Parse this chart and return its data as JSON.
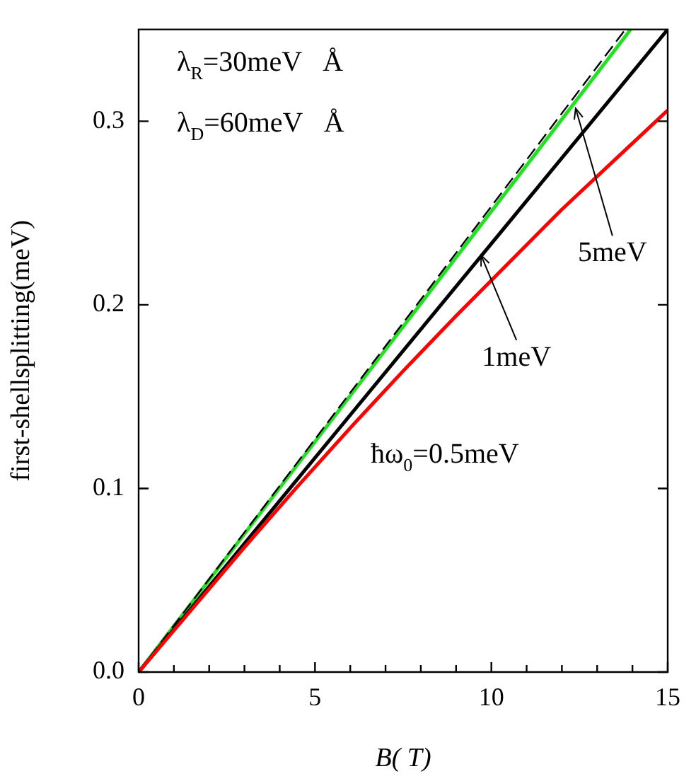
{
  "chart_data": {
    "type": "line",
    "xlabel": "B( T)",
    "ylabel": "first-shellsplitting(meV)",
    "xlim": [
      0,
      15
    ],
    "ylim": [
      0,
      0.35
    ],
    "xticks": [
      0,
      {
        "value": 1,
        "label": null
      },
      {
        "value": 2,
        "label": null
      },
      {
        "value": 3,
        "label": null
      },
      {
        "value": 4,
        "label": null
      },
      5,
      {
        "value": 6,
        "label": null
      },
      {
        "value": 7,
        "label": null
      },
      {
        "value": 8,
        "label": null
      },
      {
        "value": 9,
        "label": null
      },
      10,
      {
        "value": 11,
        "label": null
      },
      {
        "value": 12,
        "label": null
      },
      {
        "value": 13,
        "label": null
      },
      {
        "value": 14,
        "label": null
      },
      15
    ],
    "yticks": [
      {
        "value": 0,
        "label": "0.0"
      },
      0.1,
      0.2,
      0.3
    ],
    "grid": false,
    "legend": false,
    "marker": "none",
    "series": [
      {
        "color": "#ff0000",
        "x": [
          0,
          1.5,
          3,
          4.5,
          6,
          7.5,
          9,
          10.5,
          12,
          13.5,
          15
        ],
        "values": [
          0,
          0.034,
          0.068,
          0.101,
          0.133,
          0.164,
          0.194,
          0.223,
          0.252,
          0.279,
          0.306
        ]
      },
      {
        "color": "#000000",
        "x": [
          0,
          15
        ],
        "values": [
          0,
          0.35
        ]
      },
      {
        "color": "#000000",
        "line_style": "dashed",
        "x": [
          0,
          13.8
        ],
        "values": [
          0,
          0.35
        ]
      },
      {
        "color": "#22e022",
        "x": [
          0,
          13.95
        ],
        "values": [
          0,
          0.35
        ]
      }
    ],
    "annotations": [
      "λ$_{R}$=30meV   Å",
      "λ$_{D}$=60meV   Å",
      {
        "text": "5meV",
        "x": 12.39,
        "y": 0.307
      },
      {
        "text": "1meV",
        "x": 9.71,
        "y": 0.227
      },
      "ħω$_{0}$=0.5meV"
    ]
  }
}
